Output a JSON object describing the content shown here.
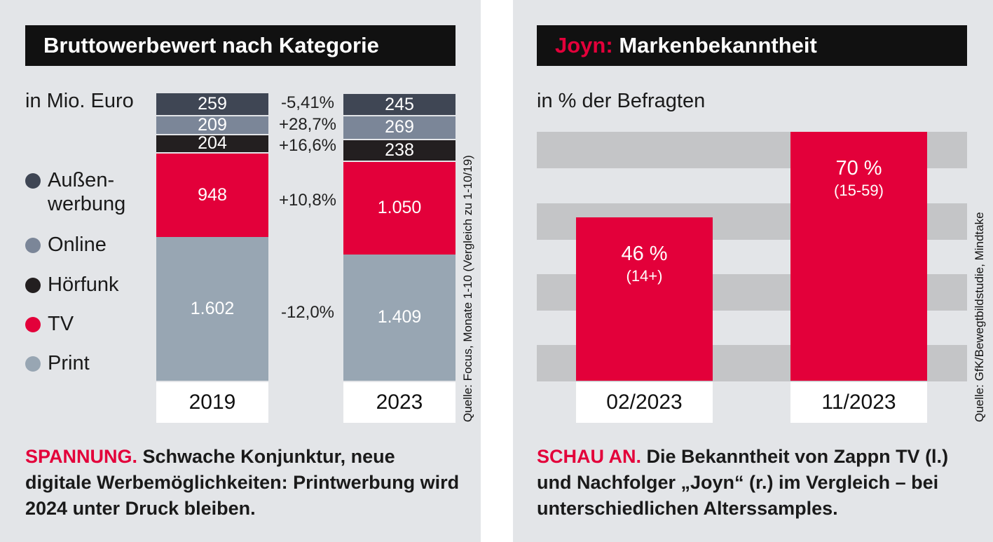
{
  "left": {
    "title": "Bruttowerbewert nach Kategorie",
    "unit": "in Mio. Euro",
    "source": "Quelle: Focus, Monate 1-10 (Vergleich zu 1-10/19)",
    "caption_lead": "SPANNUNG.",
    "caption_text": "Schwache Konjunktur, neue digitale Werbemöglichkeiten: Printwerbung wird 2024 unter Druck bleiben.",
    "legend": [
      {
        "label_line1": "Außen-",
        "label_line2": "werbung",
        "color": "#3f4654"
      },
      {
        "label_line1": "Online",
        "label_line2": "",
        "color": "#7b8698"
      },
      {
        "label_line1": "Hörfunk",
        "label_line2": "",
        "color": "#231f20"
      },
      {
        "label_line1": "TV",
        "label_line2": "",
        "color": "#e3003a"
      },
      {
        "label_line1": "Print",
        "label_line2": "",
        "color": "#98a6b3"
      }
    ]
  },
  "right": {
    "title_accent": "Joyn:",
    "title_rest": "Markenbekanntheit",
    "unit": "in % der Befragten",
    "source": "Quelle: GfK/Bewegtbildstudie, Mindtake",
    "caption_lead": "SCHAU AN.",
    "caption_text": "Die Bekanntheit von Zappn TV (l.) und Nachfolger „Joyn“ (r.) im Vergleich – bei unterschiedlichen Alterssamples."
  },
  "chart_data": [
    {
      "type": "bar",
      "stacked": true,
      "title": "Bruttowerbewert nach Kategorie",
      "ylabel": "in Mio. Euro",
      "categories": [
        "2019",
        "2023"
      ],
      "series": [
        {
          "name": "Print",
          "color": "#98a6b3",
          "values": [
            1602,
            1409
          ],
          "labels": [
            "1.602",
            "1.409"
          ],
          "change": "-12,0%"
        },
        {
          "name": "TV",
          "color": "#e3003a",
          "values": [
            948,
            1050
          ],
          "labels": [
            "948",
            "1.050"
          ],
          "change": "+10,8%"
        },
        {
          "name": "Hörfunk",
          "color": "#231f20",
          "values": [
            204,
            238
          ],
          "labels": [
            "204",
            "238"
          ],
          "change": "+16,6%"
        },
        {
          "name": "Online",
          "color": "#7b8698",
          "values": [
            209,
            269
          ],
          "labels": [
            "209",
            "269"
          ],
          "change": "+28,7%"
        },
        {
          "name": "Außenwerbung",
          "color": "#3f4654",
          "values": [
            259,
            245
          ],
          "labels": [
            "259",
            "245"
          ],
          "change": "-5,41%"
        }
      ]
    },
    {
      "type": "bar",
      "title": "Joyn: Markenbekanntheit",
      "ylabel": "in % der Befragten",
      "categories": [
        "02/2023",
        "11/2023"
      ],
      "values": [
        46,
        70
      ],
      "value_labels": [
        "46 %",
        "70 %"
      ],
      "sample_labels": [
        "(14+)",
        "(15-59)"
      ],
      "ylim": [
        0,
        70
      ],
      "color": "#e3003a"
    }
  ]
}
